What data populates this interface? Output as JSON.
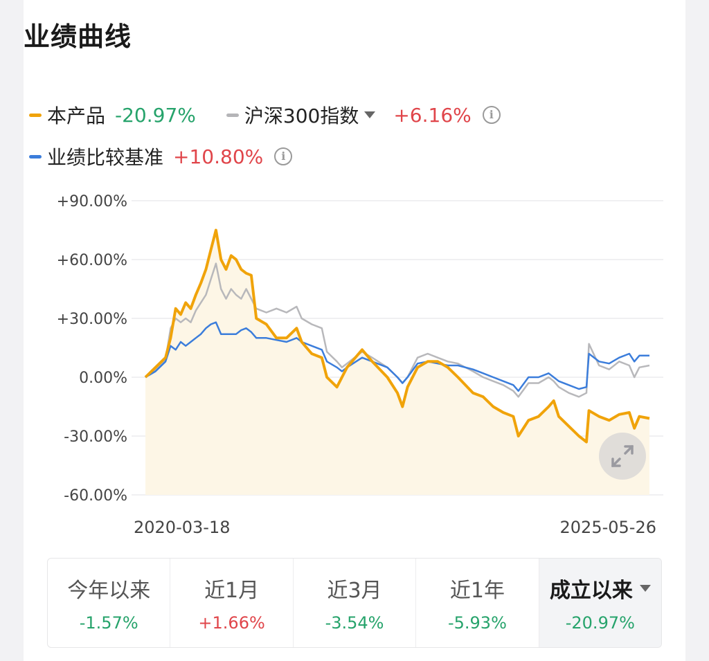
{
  "header": {
    "title": "业绩曲线"
  },
  "legend": {
    "product": {
      "name": "本产品",
      "value": "-20.97%",
      "color": "#f0a30a"
    },
    "index": {
      "name": "沪深300指数",
      "value": "+6.16%",
      "color": "#b5b5b8",
      "dropdown_icon": "caret-down-icon",
      "info_icon": "info-icon"
    },
    "benchmark": {
      "name": "业绩比较基准",
      "value": "+10.80%",
      "color": "#3b7ddb",
      "info_icon": "info-icon"
    }
  },
  "chart_data": {
    "type": "line",
    "y_ticks": [
      "+90.00%",
      "+60.00%",
      "+30.00%",
      "0.00%",
      "-30.00%",
      "-60.00%"
    ],
    "ylim": [
      -60,
      90
    ],
    "x_start_label": "2020-03-18",
    "x_end_label": "2025-05-26",
    "series": [
      {
        "name": "本产品",
        "color": "#f0a30a",
        "fill": true,
        "points": [
          [
            0,
            0
          ],
          [
            0.02,
            5
          ],
          [
            0.04,
            10
          ],
          [
            0.05,
            20
          ],
          [
            0.06,
            35
          ],
          [
            0.07,
            32
          ],
          [
            0.08,
            38
          ],
          [
            0.09,
            35
          ],
          [
            0.1,
            42
          ],
          [
            0.11,
            48
          ],
          [
            0.12,
            55
          ],
          [
            0.13,
            65
          ],
          [
            0.14,
            75
          ],
          [
            0.15,
            60
          ],
          [
            0.16,
            55
          ],
          [
            0.17,
            62
          ],
          [
            0.18,
            60
          ],
          [
            0.19,
            55
          ],
          [
            0.2,
            53
          ],
          [
            0.21,
            52
          ],
          [
            0.22,
            30
          ],
          [
            0.24,
            27
          ],
          [
            0.26,
            20
          ],
          [
            0.28,
            20
          ],
          [
            0.3,
            25
          ],
          [
            0.31,
            18
          ],
          [
            0.33,
            12
          ],
          [
            0.35,
            10
          ],
          [
            0.36,
            0
          ],
          [
            0.38,
            -5
          ],
          [
            0.39,
            0
          ],
          [
            0.4,
            5
          ],
          [
            0.43,
            14
          ],
          [
            0.45,
            8
          ],
          [
            0.48,
            0
          ],
          [
            0.5,
            -8
          ],
          [
            0.51,
            -15
          ],
          [
            0.52,
            -5
          ],
          [
            0.54,
            5
          ],
          [
            0.56,
            8
          ],
          [
            0.58,
            8
          ],
          [
            0.6,
            5
          ],
          [
            0.62,
            0
          ],
          [
            0.65,
            -8
          ],
          [
            0.67,
            -10
          ],
          [
            0.69,
            -15
          ],
          [
            0.71,
            -18
          ],
          [
            0.73,
            -20
          ],
          [
            0.74,
            -30
          ],
          [
            0.76,
            -22
          ],
          [
            0.78,
            -20
          ],
          [
            0.8,
            -15
          ],
          [
            0.81,
            -12
          ],
          [
            0.82,
            -20
          ],
          [
            0.84,
            -25
          ],
          [
            0.86,
            -30
          ],
          [
            0.875,
            -33
          ],
          [
            0.88,
            -17
          ],
          [
            0.9,
            -20
          ],
          [
            0.92,
            -22
          ],
          [
            0.94,
            -19
          ],
          [
            0.96,
            -18
          ],
          [
            0.97,
            -26
          ],
          [
            0.98,
            -20
          ],
          [
            1.0,
            -21
          ]
        ]
      },
      {
        "name": "沪深300指数",
        "color": "#b8b8bb",
        "fill": false,
        "points": [
          [
            0,
            0
          ],
          [
            0.02,
            4
          ],
          [
            0.04,
            9
          ],
          [
            0.05,
            25
          ],
          [
            0.06,
            30
          ],
          [
            0.07,
            28
          ],
          [
            0.08,
            30
          ],
          [
            0.09,
            28
          ],
          [
            0.1,
            34
          ],
          [
            0.11,
            38
          ],
          [
            0.12,
            42
          ],
          [
            0.13,
            50
          ],
          [
            0.14,
            58
          ],
          [
            0.15,
            45
          ],
          [
            0.16,
            40
          ],
          [
            0.17,
            45
          ],
          [
            0.18,
            42
          ],
          [
            0.19,
            40
          ],
          [
            0.2,
            45
          ],
          [
            0.21,
            40
          ],
          [
            0.22,
            35
          ],
          [
            0.24,
            33
          ],
          [
            0.26,
            35
          ],
          [
            0.28,
            33
          ],
          [
            0.3,
            36
          ],
          [
            0.31,
            30
          ],
          [
            0.33,
            27
          ],
          [
            0.35,
            25
          ],
          [
            0.36,
            13
          ],
          [
            0.38,
            8
          ],
          [
            0.39,
            5
          ],
          [
            0.4,
            7
          ],
          [
            0.43,
            13
          ],
          [
            0.45,
            10
          ],
          [
            0.48,
            5
          ],
          [
            0.5,
            0
          ],
          [
            0.51,
            -3
          ],
          [
            0.52,
            0
          ],
          [
            0.54,
            10
          ],
          [
            0.56,
            12
          ],
          [
            0.58,
            10
          ],
          [
            0.6,
            8
          ],
          [
            0.62,
            7
          ],
          [
            0.65,
            3
          ],
          [
            0.67,
            0
          ],
          [
            0.69,
            -2
          ],
          [
            0.71,
            -4
          ],
          [
            0.73,
            -7
          ],
          [
            0.74,
            -10
          ],
          [
            0.76,
            -3
          ],
          [
            0.78,
            -3
          ],
          [
            0.8,
            0
          ],
          [
            0.81,
            -2
          ],
          [
            0.82,
            -5
          ],
          [
            0.84,
            -8
          ],
          [
            0.86,
            -10
          ],
          [
            0.875,
            -8
          ],
          [
            0.88,
            17
          ],
          [
            0.9,
            6
          ],
          [
            0.92,
            4
          ],
          [
            0.94,
            8
          ],
          [
            0.96,
            6
          ],
          [
            0.97,
            0
          ],
          [
            0.98,
            5
          ],
          [
            1.0,
            6
          ]
        ]
      },
      {
        "name": "业绩比较基准",
        "color": "#3b7ddb",
        "fill": false,
        "points": [
          [
            0,
            0
          ],
          [
            0.02,
            3
          ],
          [
            0.04,
            8
          ],
          [
            0.05,
            16
          ],
          [
            0.06,
            14
          ],
          [
            0.07,
            18
          ],
          [
            0.08,
            16
          ],
          [
            0.09,
            18
          ],
          [
            0.1,
            20
          ],
          [
            0.11,
            22
          ],
          [
            0.12,
            25
          ],
          [
            0.13,
            27
          ],
          [
            0.14,
            28
          ],
          [
            0.15,
            22
          ],
          [
            0.16,
            22
          ],
          [
            0.17,
            22
          ],
          [
            0.18,
            22
          ],
          [
            0.19,
            24
          ],
          [
            0.2,
            25
          ],
          [
            0.21,
            23
          ],
          [
            0.22,
            20
          ],
          [
            0.24,
            20
          ],
          [
            0.26,
            19
          ],
          [
            0.28,
            18
          ],
          [
            0.3,
            20
          ],
          [
            0.31,
            18
          ],
          [
            0.33,
            16
          ],
          [
            0.35,
            14
          ],
          [
            0.36,
            8
          ],
          [
            0.38,
            5
          ],
          [
            0.39,
            3
          ],
          [
            0.4,
            5
          ],
          [
            0.43,
            10
          ],
          [
            0.45,
            8
          ],
          [
            0.48,
            5
          ],
          [
            0.5,
            0
          ],
          [
            0.51,
            -3
          ],
          [
            0.52,
            0
          ],
          [
            0.54,
            7
          ],
          [
            0.56,
            8
          ],
          [
            0.58,
            7
          ],
          [
            0.6,
            6
          ],
          [
            0.62,
            6
          ],
          [
            0.65,
            4
          ],
          [
            0.67,
            2
          ],
          [
            0.69,
            0
          ],
          [
            0.71,
            -2
          ],
          [
            0.73,
            -4
          ],
          [
            0.74,
            -7
          ],
          [
            0.76,
            0
          ],
          [
            0.78,
            0
          ],
          [
            0.8,
            2
          ],
          [
            0.81,
            0
          ],
          [
            0.82,
            -2
          ],
          [
            0.84,
            -4
          ],
          [
            0.86,
            -6
          ],
          [
            0.875,
            -5
          ],
          [
            0.88,
            12
          ],
          [
            0.9,
            8
          ],
          [
            0.92,
            7
          ],
          [
            0.94,
            10
          ],
          [
            0.96,
            12
          ],
          [
            0.97,
            8
          ],
          [
            0.98,
            11
          ],
          [
            1.0,
            11
          ]
        ]
      }
    ]
  },
  "expand_icon": "expand-icon",
  "tabs": [
    {
      "label": "今年以来",
      "value": "-1.57%",
      "trend": "down",
      "active": false
    },
    {
      "label": "近1月",
      "value": "+1.66%",
      "trend": "up",
      "active": false
    },
    {
      "label": "近3月",
      "value": "-3.54%",
      "trend": "down",
      "active": false
    },
    {
      "label": "近1年",
      "value": "-5.93%",
      "trend": "down",
      "active": false
    },
    {
      "label": "成立以来",
      "value": "-20.97%",
      "trend": "down",
      "active": true,
      "dropdown_icon": "caret-down-icon"
    }
  ]
}
